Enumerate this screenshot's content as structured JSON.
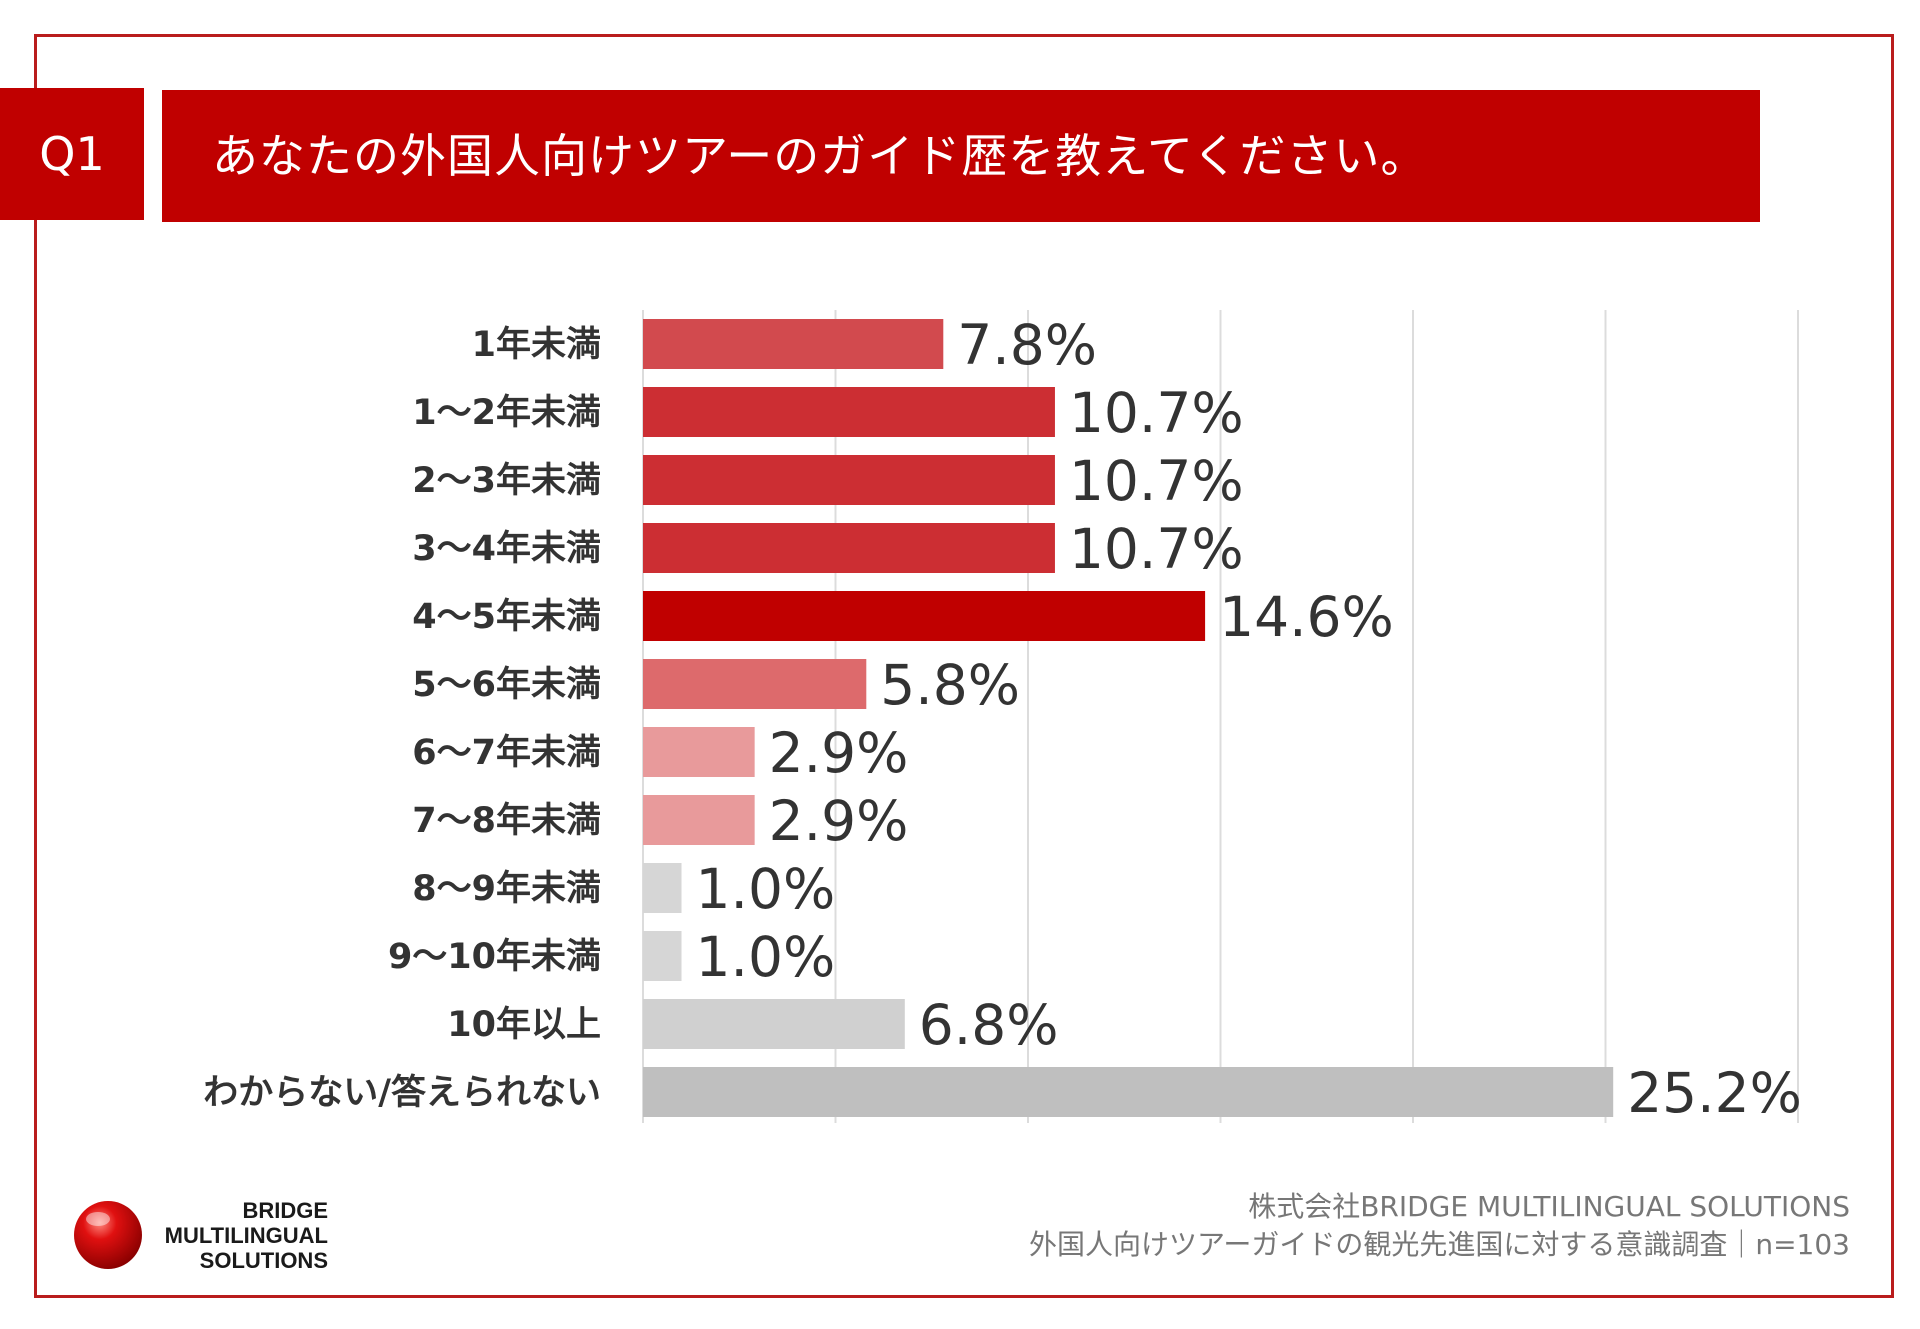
{
  "header": {
    "badge": "Q1",
    "question": "あなたの外国人向けツアーのガイド歴を教えてください。"
  },
  "chart_data": {
    "type": "bar",
    "orientation": "horizontal",
    "categories": [
      "1年未満",
      "1～2年未満",
      "2～3年未満",
      "3～4年未満",
      "4～5年未満",
      "5～6年未満",
      "6～7年未満",
      "7～8年未満",
      "8～9年未満",
      "9～10年未満",
      "10年以上",
      "わからない/答えられない"
    ],
    "values": [
      7.8,
      10.7,
      10.7,
      10.7,
      14.6,
      5.8,
      2.9,
      2.9,
      1.0,
      1.0,
      6.8,
      25.2
    ],
    "value_labels": [
      "7.8%",
      "10.7%",
      "10.7%",
      "10.7%",
      "14.6%",
      "5.8%",
      "2.9%",
      "2.9%",
      "1.0%",
      "1.0%",
      "6.8%",
      "25.2%"
    ],
    "bar_colors": [
      "#d24a4e",
      "#cc2e33",
      "#cc2e33",
      "#cc2e33",
      "#c00000",
      "#dd6a6c",
      "#e89a9b",
      "#e89a9b",
      "#d6d6d6",
      "#d6d6d6",
      "#d0d0d0",
      "#bfbfbf"
    ],
    "xlim": [
      0,
      30
    ],
    "grid": true,
    "unit": "%"
  },
  "footer": {
    "company": "株式会社BRIDGE MULTILINGUAL SOLUTIONS",
    "survey": "外国人向けツアーガイドの観光先進国に対する意識調査｜n=103"
  },
  "logo": {
    "line1": "BRIDGE",
    "line2": "MULTILINGUAL",
    "line3": "SOLUTIONS",
    "mark_color": "#d40000"
  }
}
